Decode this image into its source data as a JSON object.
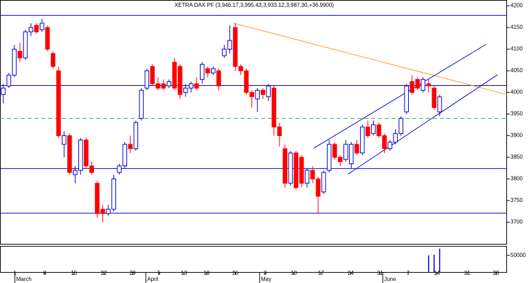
{
  "chart_data": {
    "type": "candlestick",
    "title": "XETRA DAX PF (3,946.17,3,995.43,3,933.12,3,987.30,+36.9900)",
    "open": [
      3995,
      4015,
      4040,
      4095,
      4080,
      4140,
      4155,
      4145,
      4150,
      4090,
      4050,
      3880,
      3900,
      3810,
      3820,
      3890,
      3830,
      3790,
      3730,
      3720,
      3730,
      3815,
      3830,
      3880,
      3870,
      3940,
      4010,
      4060,
      4020,
      4020,
      4015,
      4070,
      4060,
      4000,
      4010,
      4020,
      4030,
      4055,
      4045,
      4050,
      4085,
      4100,
      4150,
      4060,
      4050,
      4000,
      3985,
      4005,
      3990,
      4010,
      3920,
      3870,
      3790,
      3860,
      3850,
      3790,
      3820,
      3800,
      3770,
      3820,
      3880,
      3850,
      3845,
      3835,
      3880,
      3860,
      3920,
      3905,
      3925,
      3900,
      3870,
      3885,
      3905,
      3955,
      4025,
      4030,
      4005,
      4020,
      4010,
      3955
    ],
    "high": [
      4020,
      4045,
      4110,
      4115,
      4145,
      4160,
      4160,
      4170,
      4155,
      4095,
      4060,
      3910,
      3905,
      3830,
      3895,
      3895,
      3840,
      3795,
      3740,
      3740,
      3810,
      3835,
      3885,
      3900,
      3935,
      4010,
      4055,
      4065,
      4035,
      4030,
      4030,
      4080,
      4065,
      4020,
      4025,
      4035,
      4070,
      4060,
      4060,
      4055,
      4110,
      4155,
      4160,
      4065,
      4055,
      4005,
      4010,
      4010,
      4020,
      4015,
      3930,
      3880,
      3865,
      3865,
      3855,
      3825,
      3830,
      3805,
      3820,
      3890,
      3885,
      3855,
      3890,
      3885,
      3890,
      3925,
      3935,
      3935,
      3930,
      3905,
      3890,
      3915,
      3945,
      4020,
      4040,
      4035,
      4035,
      4030,
      4015,
      3995
    ],
    "low": [
      3975,
      4010,
      4035,
      4070,
      4075,
      4130,
      4135,
      4140,
      4095,
      4055,
      3895,
      3850,
      3810,
      3790,
      3810,
      3825,
      3810,
      3710,
      3700,
      3715,
      3725,
      3810,
      3825,
      3860,
      3865,
      3935,
      4005,
      4015,
      4005,
      4005,
      4010,
      4005,
      3985,
      3990,
      4000,
      4005,
      4020,
      4035,
      4040,
      4005,
      4080,
      4090,
      4050,
      4040,
      3995,
      3965,
      3955,
      3985,
      3980,
      3900,
      3875,
      3780,
      3785,
      3775,
      3780,
      3780,
      3790,
      3720,
      3765,
      3815,
      3845,
      3830,
      3840,
      3825,
      3855,
      3855,
      3895,
      3900,
      3895,
      3860,
      3865,
      3880,
      3900,
      3950,
      3995,
      4005,
      4000,
      4000,
      3960,
      3945
    ],
    "close": [
      4010,
      4040,
      4100,
      4080,
      4140,
      4150,
      4140,
      4160,
      4100,
      4060,
      3900,
      3900,
      3815,
      3820,
      3890,
      3830,
      3815,
      3720,
      3720,
      3730,
      3800,
      3830,
      3880,
      3870,
      3930,
      4005,
      4050,
      4020,
      4010,
      4010,
      4025,
      4010,
      3995,
      4010,
      4020,
      4010,
      4065,
      4045,
      4055,
      4015,
      4100,
      4120,
      4060,
      4050,
      4000,
      3990,
      4005,
      3995,
      4015,
      3920,
      3900,
      3790,
      3860,
      3780,
      3790,
      3820,
      3800,
      3760,
      3815,
      3880,
      3850,
      3840,
      3880,
      3880,
      3860,
      3920,
      3900,
      3925,
      3900,
      3870,
      3885,
      3905,
      3940,
      4015,
      4000,
      4010,
      4030,
      4015,
      3965,
      3990
    ],
    "volume": [
      null,
      null,
      null,
      null,
      null,
      null,
      null,
      null,
      null,
      null,
      null,
      null,
      null,
      null,
      null,
      null,
      null,
      null,
      null,
      null,
      null,
      null,
      null,
      null,
      null,
      null,
      null,
      null,
      null,
      null,
      null,
      null,
      null,
      null,
      null,
      null,
      null,
      null,
      null,
      null,
      null,
      null,
      null,
      null,
      null,
      null,
      null,
      null,
      null,
      null,
      null,
      null,
      null,
      null,
      null,
      null,
      null,
      null,
      null,
      null,
      null,
      null,
      null,
      null,
      null,
      null,
      null,
      null,
      null,
      null,
      null,
      null,
      null,
      null,
      null,
      null,
      null,
      50000,
      52000,
      70000
    ],
    "up_color": "#0000cc",
    "down_color": "#ff0000",
    "xlim": [
      -0.6,
      91.2
    ],
    "xticks": [
      {
        "value": 2.1,
        "label": "1"
      },
      {
        "value": 7.5,
        "label": "8"
      },
      {
        "value": 12.8,
        "label": "15"
      },
      {
        "value": 18.2,
        "label": "22"
      },
      {
        "value": 23.4,
        "label": "29"
      },
      {
        "value": 28.2,
        "label": "5"
      },
      {
        "value": 32.7,
        "label": "13"
      },
      {
        "value": 36.8,
        "label": "19"
      },
      {
        "value": 42,
        "label": "26"
      },
      {
        "value": 47.4,
        "label": "3"
      },
      {
        "value": 52.6,
        "label": "10"
      },
      {
        "value": 57.5,
        "label": "17"
      },
      {
        "value": 62.9,
        "label": "24"
      },
      {
        "value": 68.2,
        "label": "31"
      },
      {
        "value": 73.3,
        "label": "7"
      },
      {
        "value": 78.5,
        "label": "14"
      },
      {
        "value": 84,
        "label": "21"
      },
      {
        "value": 89.2,
        "label": "28"
      }
    ],
    "month_ticks": [
      {
        "value": 2.1,
        "label": "March"
      },
      {
        "value": 25.8,
        "label": "April"
      },
      {
        "value": 46.4,
        "label": "May"
      },
      {
        "value": 68.7,
        "label": "June"
      }
    ],
    "ylim": [
      3650,
      4212
    ],
    "yticks": [
      3700,
      3750,
      3800,
      3850,
      3900,
      3950,
      4000,
      4050,
      4100,
      4150,
      4200
    ],
    "y2lim": [
      0,
      76000
    ],
    "y2ticks": [
      50000
    ],
    "hlines": [
      {
        "value": 4178,
        "color": "#0000cc",
        "style": "solid"
      },
      {
        "value": 4016,
        "color": "#0000cc",
        "style": "solid"
      },
      {
        "value": 3940,
        "color": "#33aa55",
        "style": "dashed"
      },
      {
        "value": 3824,
        "color": "#0000cc",
        "style": "solid"
      },
      {
        "value": 3721,
        "color": "#0000cc",
        "style": "solid"
      }
    ],
    "trendlines": [
      {
        "from": [
          41.7,
          4160
        ],
        "to": [
          91.2,
          3995
        ],
        "color": "#ff9933"
      },
      {
        "from": [
          56.2,
          3871
        ],
        "to": [
          87.4,
          4111
        ],
        "color": "#0000cc"
      },
      {
        "from": [
          62.4,
          3811
        ],
        "to": [
          89.5,
          4041
        ],
        "color": "#0000cc"
      }
    ]
  }
}
